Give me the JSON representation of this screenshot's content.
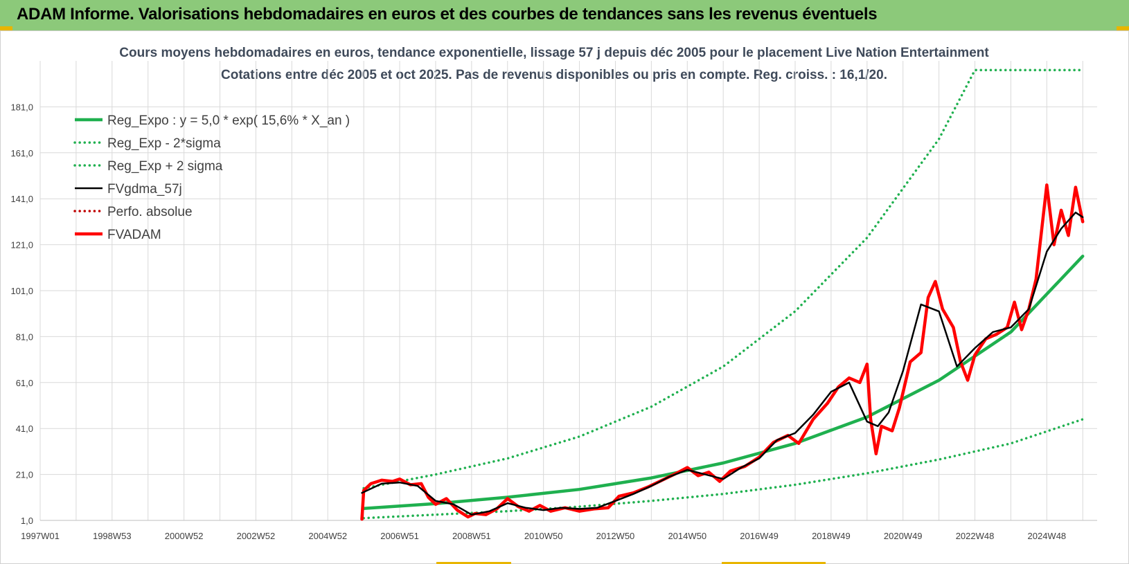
{
  "page_title": "ADAM Informe. Valorisations hebdomadaires en euros et des courbes de tendances sans les revenus éventuels",
  "colors": {
    "banner": "#8cc97a",
    "reg_expo": "#1fb04f",
    "bands": "#1fb04f",
    "fvgdma": "#000000",
    "perfo": "#c00000",
    "fvadam": "#ff0000",
    "grid": "#d9d9d9"
  },
  "chart_data": {
    "type": "line",
    "title": "Cours moyens hebdomadaires en euros, tendance exponentielle, lissage 57 j depuis déc 2005 pour le placement Live  Nation Entertainment",
    "subtitle": "Cotations entre déc 2005 et oct 2025.  Pas de revenus disponibles ou pris en compte. Reg. croiss. : 16,1/20.",
    "xlabel": "",
    "ylabel": "",
    "ylim": [
      1,
      201
    ],
    "xlim": [
      1997.0,
      2026.4
    ],
    "y_ticks": [
      "1,0",
      "21,0",
      "41,0",
      "61,0",
      "81,0",
      "101,0",
      "121,0",
      "141,0",
      "161,0",
      "181,0"
    ],
    "x_ticks": [
      {
        "label": "1997W01",
        "x": 1997.0
      },
      {
        "label": "1998W53",
        "x": 1999.0
      },
      {
        "label": "2000W52",
        "x": 2001.0
      },
      {
        "label": "2002W52",
        "x": 2003.0
      },
      {
        "label": "2004W52",
        "x": 2005.0
      },
      {
        "label": "2006W51",
        "x": 2007.0
      },
      {
        "label": "2008W51",
        "x": 2009.0
      },
      {
        "label": "2010W50",
        "x": 2011.0
      },
      {
        "label": "2012W50",
        "x": 2013.0
      },
      {
        "label": "2014W50",
        "x": 2015.0
      },
      {
        "label": "2016W49",
        "x": 2017.0
      },
      {
        "label": "2018W49",
        "x": 2019.0
      },
      {
        "label": "2020W49",
        "x": 2021.0
      },
      {
        "label": "2022W48",
        "x": 2023.0
      },
      {
        "label": "2024W48",
        "x": 2025.0
      }
    ],
    "grid": true,
    "legend_position": "top-left",
    "series": [
      {
        "name": "Reg_Expo : y = 5,0 * exp( 15,6% *  X_an )",
        "style": "solid-thick",
        "color": "#1fb04f",
        "x": [
          2006.0,
          2008.0,
          2010.0,
          2012.0,
          2014.0,
          2016.0,
          2018.0,
          2020.0,
          2022.0,
          2024.0,
          2026.0
        ],
        "y": [
          6.2,
          8.3,
          11.1,
          14.5,
          19.5,
          26.0,
          34.5,
          46.0,
          62.0,
          83.0,
          116.0
        ]
      },
      {
        "name": "Reg_Exp - 2*sigma",
        "style": "dotted",
        "color": "#1fb04f",
        "x": [
          2006.0,
          2008.0,
          2010.0,
          2012.0,
          2014.0,
          2016.0,
          2018.0,
          2020.0,
          2022.0,
          2024.0,
          2026.0
        ],
        "y": [
          2.0,
          3.5,
          5.0,
          7.0,
          9.5,
          12.5,
          16.5,
          21.5,
          27.5,
          34.5,
          45.0
        ]
      },
      {
        "name": "Reg_Exp + 2 sigma",
        "style": "dotted",
        "color": "#1fb04f",
        "x": [
          2006.0,
          2008.0,
          2010.0,
          2012.0,
          2014.0,
          2016.0,
          2018.0,
          2020.0,
          2022.0,
          2023.0,
          2024.0,
          2025.0,
          2026.0
        ],
        "y": [
          15.0,
          21.0,
          28.0,
          37.5,
          50.5,
          68.0,
          92.0,
          124.0,
          167.0,
          197.0,
          197.0,
          197.0,
          197.0
        ]
      },
      {
        "name": "FVgdma_57j",
        "style": "solid",
        "color": "#000000",
        "x": [
          2005.95,
          2006.5,
          2007.0,
          2007.5,
          2008.0,
          2008.5,
          2009.0,
          2009.5,
          2010.0,
          2010.5,
          2011.0,
          2011.5,
          2012.0,
          2012.5,
          2013.0,
          2013.5,
          2014.0,
          2014.5,
          2015.0,
          2015.5,
          2016.0,
          2016.5,
          2017.0,
          2017.5,
          2018.0,
          2018.5,
          2019.0,
          2019.5,
          2020.0,
          2020.3,
          2020.6,
          2021.0,
          2021.5,
          2022.0,
          2022.5,
          2023.0,
          2023.5,
          2024.0,
          2024.5,
          2025.0,
          2025.4,
          2025.8,
          2026.0
        ],
        "y": [
          13.0,
          17.0,
          17.5,
          16.0,
          9.5,
          8.0,
          3.5,
          5.0,
          8.5,
          6.5,
          5.5,
          6.5,
          6.0,
          6.5,
          9.5,
          12.5,
          16.0,
          20.0,
          23.0,
          21.0,
          19.0,
          24.0,
          28.0,
          36.0,
          39.0,
          47.0,
          57.0,
          61.0,
          44.0,
          42.0,
          48.0,
          66.0,
          95.0,
          92.0,
          68.0,
          76.0,
          83.0,
          85.0,
          93.0,
          118.0,
          128.0,
          135.0,
          133.0
        ]
      },
      {
        "name": "Perfo. absolue",
        "style": "dotted",
        "color": "#c00000",
        "x": [],
        "y": []
      },
      {
        "name": "FVADAM",
        "style": "solid-thick",
        "color": "#ff0000",
        "x": [
          2005.95,
          2006.0,
          2006.2,
          2006.5,
          2006.8,
          2007.0,
          2007.3,
          2007.6,
          2007.8,
          2008.0,
          2008.3,
          2008.6,
          2008.9,
          2009.1,
          2009.4,
          2009.7,
          2010.0,
          2010.3,
          2010.6,
          2010.9,
          2011.2,
          2011.6,
          2012.0,
          2012.4,
          2012.8,
          2013.1,
          2013.5,
          2013.9,
          2014.3,
          2014.7,
          2015.0,
          2015.3,
          2015.6,
          2015.9,
          2016.2,
          2016.6,
          2017.0,
          2017.4,
          2017.8,
          2018.1,
          2018.5,
          2018.9,
          2019.2,
          2019.5,
          2019.8,
          2020.0,
          2020.1,
          2020.25,
          2020.4,
          2020.7,
          2020.9,
          2021.2,
          2021.5,
          2021.7,
          2021.9,
          2022.1,
          2022.4,
          2022.6,
          2022.8,
          2023.0,
          2023.3,
          2023.6,
          2023.9,
          2024.1,
          2024.3,
          2024.5,
          2024.7,
          2025.0,
          2025.2,
          2025.4,
          2025.6,
          2025.8,
          2026.0
        ],
        "y": [
          1.5,
          14.0,
          17.0,
          18.5,
          18.0,
          19.0,
          16.5,
          17.0,
          11.0,
          8.0,
          10.5,
          5.5,
          2.5,
          4.0,
          3.5,
          6.0,
          10.5,
          7.0,
          5.0,
          7.5,
          5.0,
          6.5,
          5.0,
          6.0,
          6.5,
          11.5,
          13.0,
          15.5,
          18.5,
          21.5,
          24.0,
          20.5,
          22.0,
          18.0,
          22.5,
          24.5,
          28.5,
          35.0,
          38.0,
          34.5,
          45.0,
          52.0,
          59.0,
          63.0,
          61.0,
          69.0,
          45.0,
          30.0,
          42.0,
          40.0,
          50.0,
          70.0,
          74.0,
          98.0,
          105.0,
          93.0,
          85.0,
          70.0,
          62.0,
          73.0,
          80.0,
          82.0,
          85.0,
          96.0,
          84.0,
          93.0,
          106.0,
          147.0,
          121.0,
          136.0,
          125.0,
          146.0,
          131.0
        ]
      }
    ]
  }
}
